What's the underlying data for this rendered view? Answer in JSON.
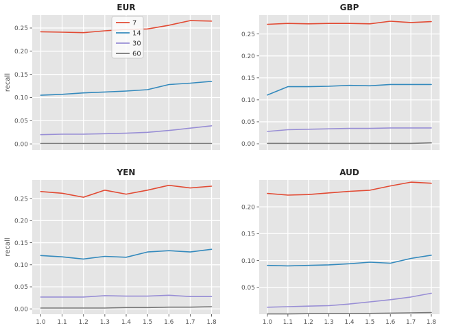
{
  "style": {
    "figure_bg": "#ffffff",
    "axes_bg": "#e5e5e5",
    "grid_color": "#ffffff",
    "tick_text_color": "#555555",
    "title_text_color": "#262626",
    "legend_bg": "#fcfcfc",
    "legend_border": "#cccccc",
    "legend_text_color": "#333333"
  },
  "chart_data": [
    {
      "type": "line",
      "title": "EUR",
      "ylabel": "recall",
      "x": [
        1.0,
        1.1,
        1.2,
        1.3,
        1.4,
        1.5,
        1.6,
        1.7,
        1.8
      ],
      "xlim": [
        0.96,
        1.84
      ],
      "ylim": [
        -0.013,
        0.278
      ],
      "xticks": [
        1.0,
        1.1,
        1.2,
        1.3,
        1.4,
        1.5,
        1.6,
        1.7,
        1.8
      ],
      "xtick_labels": [
        "1.0",
        "1.1",
        "1.2",
        "1.3",
        "1.4",
        "1.5",
        "1.6",
        "1.7",
        "1.8"
      ],
      "yticks": [
        0.0,
        0.05,
        0.1,
        0.15,
        0.2,
        0.25
      ],
      "ytick_labels": [
        "0.00",
        "0.05",
        "0.10",
        "0.15",
        "0.20",
        "0.25"
      ],
      "show_x_tick_labels": false,
      "show_ylabel": true,
      "legend": true,
      "legend_position": "upper center-left",
      "grid": true,
      "series": [
        {
          "name": "7",
          "color": "#e24a33",
          "values": [
            0.242,
            0.241,
            0.24,
            0.244,
            0.247,
            0.248,
            0.256,
            0.266,
            0.265
          ]
        },
        {
          "name": "14",
          "color": "#348abd",
          "values": [
            0.105,
            0.107,
            0.11,
            0.112,
            0.114,
            0.117,
            0.128,
            0.131,
            0.135
          ]
        },
        {
          "name": "30",
          "color": "#988ed5",
          "values": [
            0.02,
            0.021,
            0.021,
            0.022,
            0.023,
            0.025,
            0.029,
            0.034,
            0.039
          ]
        },
        {
          "name": "60",
          "color": "#777777",
          "values": [
            0.001,
            0.001,
            0.001,
            0.001,
            0.001,
            0.001,
            0.001,
            0.001,
            0.001
          ]
        }
      ]
    },
    {
      "type": "line",
      "title": "GBP",
      "ylabel": "",
      "x": [
        1.0,
        1.1,
        1.2,
        1.3,
        1.4,
        1.5,
        1.6,
        1.7,
        1.8
      ],
      "xlim": [
        0.96,
        1.84
      ],
      "ylim": [
        -0.014,
        0.293
      ],
      "xticks": [
        1.0,
        1.1,
        1.2,
        1.3,
        1.4,
        1.5,
        1.6,
        1.7,
        1.8
      ],
      "xtick_labels": [
        "1.0",
        "1.1",
        "1.2",
        "1.3",
        "1.4",
        "1.5",
        "1.6",
        "1.7",
        "1.8"
      ],
      "yticks": [
        0.0,
        0.05,
        0.1,
        0.15,
        0.2,
        0.25
      ],
      "ytick_labels": [
        "0.00",
        "0.05",
        "0.10",
        "0.15",
        "0.20",
        "0.25"
      ],
      "show_x_tick_labels": false,
      "show_ylabel": false,
      "legend": false,
      "grid": true,
      "series": [
        {
          "name": "7",
          "color": "#e24a33",
          "values": [
            0.272,
            0.274,
            0.273,
            0.274,
            0.274,
            0.273,
            0.279,
            0.276,
            0.278
          ]
        },
        {
          "name": "14",
          "color": "#348abd",
          "values": [
            0.111,
            0.13,
            0.13,
            0.131,
            0.133,
            0.132,
            0.135,
            0.135,
            0.135
          ]
        },
        {
          "name": "30",
          "color": "#988ed5",
          "values": [
            0.028,
            0.032,
            0.033,
            0.034,
            0.035,
            0.035,
            0.036,
            0.036,
            0.036
          ]
        },
        {
          "name": "60",
          "color": "#777777",
          "values": [
            0.001,
            0.001,
            0.001,
            0.001,
            0.001,
            0.001,
            0.001,
            0.001,
            0.002
          ]
        }
      ]
    },
    {
      "type": "line",
      "title": "YEN",
      "ylabel": "recall",
      "x": [
        1.0,
        1.1,
        1.2,
        1.3,
        1.4,
        1.5,
        1.6,
        1.7,
        1.8
      ],
      "xlim": [
        0.96,
        1.84
      ],
      "ylim": [
        -0.012,
        0.292
      ],
      "xticks": [
        1.0,
        1.1,
        1.2,
        1.3,
        1.4,
        1.5,
        1.6,
        1.7,
        1.8
      ],
      "xtick_labels": [
        "1.0",
        "1.1",
        "1.2",
        "1.3",
        "1.4",
        "1.5",
        "1.6",
        "1.7",
        "1.8"
      ],
      "yticks": [
        0.0,
        0.05,
        0.1,
        0.15,
        0.2,
        0.25
      ],
      "ytick_labels": [
        "0.00",
        "0.05",
        "0.10",
        "0.15",
        "0.20",
        "0.25"
      ],
      "show_x_tick_labels": true,
      "show_ylabel": true,
      "legend": false,
      "grid": true,
      "series": [
        {
          "name": "7",
          "color": "#e24a33",
          "values": [
            0.266,
            0.262,
            0.253,
            0.269,
            0.26,
            0.269,
            0.28,
            0.274,
            0.278
          ]
        },
        {
          "name": "14",
          "color": "#348abd",
          "values": [
            0.121,
            0.118,
            0.113,
            0.119,
            0.117,
            0.129,
            0.132,
            0.129,
            0.135
          ]
        },
        {
          "name": "30",
          "color": "#988ed5",
          "values": [
            0.027,
            0.027,
            0.027,
            0.03,
            0.029,
            0.029,
            0.031,
            0.028,
            0.028
          ]
        },
        {
          "name": "60",
          "color": "#777777",
          "values": [
            0.002,
            0.002,
            0.002,
            0.002,
            0.003,
            0.003,
            0.004,
            0.004,
            0.005
          ]
        }
      ]
    },
    {
      "type": "line",
      "title": "AUD",
      "ylabel": "",
      "x": [
        1.0,
        1.1,
        1.2,
        1.3,
        1.4,
        1.5,
        1.6,
        1.7,
        1.8
      ],
      "xlim": [
        0.96,
        1.84
      ],
      "ylim": [
        0.0,
        0.25
      ],
      "xticks": [
        1.0,
        1.1,
        1.2,
        1.3,
        1.4,
        1.5,
        1.6,
        1.7,
        1.8
      ],
      "xtick_labels": [
        "1.0",
        "1.1",
        "1.2",
        "1.3",
        "1.4",
        "1.5",
        "1.6",
        "1.7",
        "1.8"
      ],
      "yticks": [
        0.05,
        0.1,
        0.15,
        0.2
      ],
      "ytick_labels": [
        "0.05",
        "0.10",
        "0.15",
        "0.20"
      ],
      "show_x_tick_labels": true,
      "show_ylabel": false,
      "legend": false,
      "grid": true,
      "series": [
        {
          "name": "7",
          "color": "#e24a33",
          "values": [
            0.225,
            0.222,
            0.223,
            0.226,
            0.229,
            0.231,
            0.239,
            0.246,
            0.244
          ]
        },
        {
          "name": "14",
          "color": "#348abd",
          "values": [
            0.091,
            0.09,
            0.091,
            0.092,
            0.094,
            0.097,
            0.095,
            0.104,
            0.11
          ]
        },
        {
          "name": "30",
          "color": "#988ed5",
          "values": [
            0.013,
            0.014,
            0.015,
            0.016,
            0.019,
            0.023,
            0.027,
            0.032,
            0.039
          ]
        },
        {
          "name": "60",
          "color": "#777777",
          "values": [
            0.0005,
            0.0005,
            0.001,
            0.001,
            0.001,
            0.0015,
            0.002,
            0.0025,
            0.003
          ]
        }
      ]
    }
  ]
}
